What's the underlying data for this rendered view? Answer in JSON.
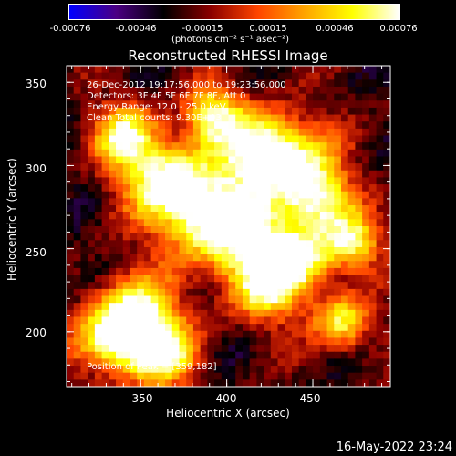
{
  "colorbar": {
    "ticks": [
      "-0.00076",
      "-0.00046",
      "-0.00015",
      "0.00015",
      "0.00046",
      "0.00076"
    ],
    "unit": "(photons cm⁻² s⁻¹ asec⁻²)"
  },
  "title": "Reconstructed RHESSI Image",
  "annotations": {
    "time_range": "26-Dec-2012 19:17:56.000 to 19:23:56.000",
    "detectors": "Detectors: 3F 4F 5F 6F 7F 8F, Att 0",
    "energy": "Energy Range: 12.0 - 25.0 keV",
    "clean": "Clean    Total counts: 9.30E+03",
    "position": "Position of Peak = [359,182]"
  },
  "footer": {
    "timestamp": "16-May-2022 23:24"
  },
  "chart_data": {
    "type": "heatmap",
    "title": "Reconstructed RHESSI Image",
    "xlabel": "Heliocentric X (arcsec)",
    "ylabel": "Heliocentric Y (arcsec)",
    "xlim": [
      307,
      495
    ],
    "ylim": [
      167,
      360
    ],
    "xticks": [
      350,
      400,
      450
    ],
    "yticks": [
      200,
      250,
      300,
      350
    ],
    "color_range": [
      -0.00076,
      0.00076
    ],
    "colormap": [
      "#0000ff",
      "#4b0082",
      "#000000",
      "#8b0000",
      "#ff4500",
      "#ffa500",
      "#ffff00",
      "#ffffff"
    ],
    "peak_position": [
      359,
      182
    ]
  }
}
